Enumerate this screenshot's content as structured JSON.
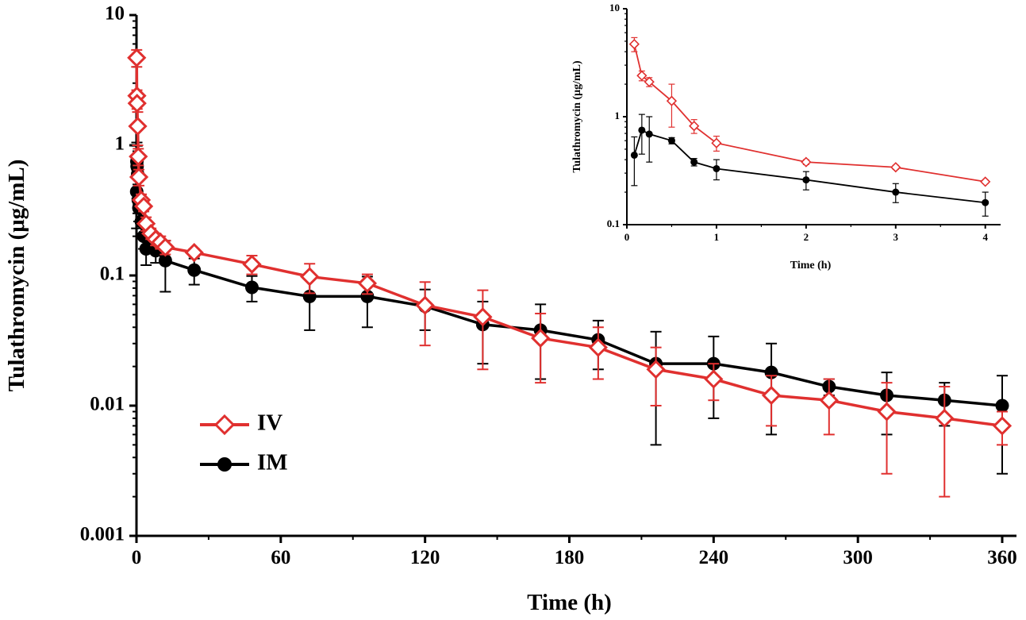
{
  "chart_data": [
    {
      "type": "line",
      "name": "main",
      "xlabel": "Time (h)",
      "ylabel": "Tulathromycin (μg/mL)",
      "yscale": "log",
      "xlim": [
        0,
        360
      ],
      "ylim": [
        0.001,
        10
      ],
      "xticks": [
        0,
        60,
        120,
        180,
        240,
        300,
        360
      ],
      "xtick_labels": [
        "0",
        "60",
        "120",
        "180",
        "240",
        "300",
        "360"
      ],
      "yticks": [
        0.001,
        0.01,
        0.1,
        1,
        10
      ],
      "ytick_labels": [
        "0.001",
        "0.01",
        "0.1",
        "1",
        "10"
      ],
      "legend": {
        "position": "lower-left",
        "entries": [
          "IV",
          "IM"
        ]
      },
      "series": [
        {
          "name": "IV",
          "color": "#e0302f",
          "marker": "open-diamond",
          "points": [
            {
              "x": 0.083,
              "y": 4.7,
              "err": 0.7
            },
            {
              "x": 0.167,
              "y": 2.4,
              "err": 0.25
            },
            {
              "x": 0.25,
              "y": 2.1,
              "err": 0.2
            },
            {
              "x": 0.5,
              "y": 1.4,
              "err": 0.4
            },
            {
              "x": 0.75,
              "y": 0.82,
              "err": 0.12
            },
            {
              "x": 1,
              "y": 0.57,
              "err": 0.08
            },
            {
              "x": 2,
              "y": 0.38,
              "err": 0.04
            },
            {
              "x": 3,
              "y": 0.34,
              "err": 0.03
            },
            {
              "x": 4,
              "y": 0.25,
              "err": 0.03
            },
            {
              "x": 6,
              "y": 0.21,
              "err": 0.02
            },
            {
              "x": 8,
              "y": 0.19,
              "err": 0.02
            },
            {
              "x": 10,
              "y": 0.18,
              "err": 0.02
            },
            {
              "x": 12,
              "y": 0.165,
              "err": 0.02
            },
            {
              "x": 24,
              "y": 0.15,
              "err": 0.01
            },
            {
              "x": 48,
              "y": 0.122,
              "err": 0.02
            },
            {
              "x": 72,
              "y": 0.098,
              "err": 0.025
            },
            {
              "x": 96,
              "y": 0.087,
              "err": 0.015
            },
            {
              "x": 120,
              "y": 0.059,
              "err": 0.03
            },
            {
              "x": 144,
              "y": 0.048,
              "err": 0.029
            },
            {
              "x": 168,
              "y": 0.033,
              "err": 0.018
            },
            {
              "x": 192,
              "y": 0.028,
              "err": 0.012
            },
            {
              "x": 216,
              "y": 0.019,
              "err": 0.009
            },
            {
              "x": 240,
              "y": 0.016,
              "err": 0.005
            },
            {
              "x": 264,
              "y": 0.012,
              "err": 0.005
            },
            {
              "x": 288,
              "y": 0.011,
              "err": 0.005
            },
            {
              "x": 312,
              "y": 0.009,
              "err": 0.006
            },
            {
              "x": 336,
              "y": 0.008,
              "err": 0.006
            },
            {
              "x": 360,
              "y": 0.007,
              "err": 0.002
            }
          ]
        },
        {
          "name": "IM",
          "color": "#000000",
          "marker": "filled-circle",
          "points": [
            {
              "x": 0.083,
              "y": 0.44,
              "err": 0.21
            },
            {
              "x": 0.167,
              "y": 0.75,
              "err": 0.3
            },
            {
              "x": 0.25,
              "y": 0.69,
              "err": 0.3
            },
            {
              "x": 0.5,
              "y": 0.6,
              "err": 0.04
            },
            {
              "x": 0.75,
              "y": 0.38,
              "err": 0.03
            },
            {
              "x": 1,
              "y": 0.33,
              "err": 0.07
            },
            {
              "x": 2,
              "y": 0.26,
              "err": 0.05
            },
            {
              "x": 3,
              "y": 0.2,
              "err": 0.04
            },
            {
              "x": 4,
              "y": 0.16,
              "err": 0.04
            },
            {
              "x": 6,
              "y": 0.18,
              "err": 0.03
            },
            {
              "x": 8,
              "y": 0.155,
              "err": 0.03
            },
            {
              "x": 12,
              "y": 0.13,
              "err": 0.055
            },
            {
              "x": 24,
              "y": 0.11,
              "err": 0.025
            },
            {
              "x": 48,
              "y": 0.081,
              "err": 0.018
            },
            {
              "x": 72,
              "y": 0.069,
              "err": 0.031
            },
            {
              "x": 96,
              "y": 0.069,
              "err": 0.029
            },
            {
              "x": 120,
              "y": 0.058,
              "err": 0.02
            },
            {
              "x": 144,
              "y": 0.042,
              "err": 0.021
            },
            {
              "x": 168,
              "y": 0.038,
              "err": 0.022
            },
            {
              "x": 192,
              "y": 0.032,
              "err": 0.013
            },
            {
              "x": 216,
              "y": 0.021,
              "err": 0.016
            },
            {
              "x": 240,
              "y": 0.021,
              "err": 0.013
            },
            {
              "x": 264,
              "y": 0.018,
              "err": 0.012
            },
            {
              "x": 288,
              "y": 0.014,
              "err": 0.002
            },
            {
              "x": 312,
              "y": 0.012,
              "err": 0.006
            },
            {
              "x": 336,
              "y": 0.011,
              "err": 0.004
            },
            {
              "x": 360,
              "y": 0.01,
              "err": 0.007
            }
          ]
        }
      ]
    },
    {
      "type": "line",
      "name": "inset",
      "xlabel": "Time (h)",
      "ylabel": "Tulathromycin (μg/mL)",
      "yscale": "log",
      "xlim": [
        0,
        4.1
      ],
      "ylim": [
        0.1,
        10
      ],
      "xticks": [
        0,
        1,
        2,
        3,
        4
      ],
      "xtick_labels": [
        "0",
        "1",
        "2",
        "3",
        "4"
      ],
      "yticks": [
        0.1,
        1,
        10
      ],
      "ytick_labels": [
        "0.1",
        "1",
        "10"
      ],
      "series": [
        {
          "name": "IV",
          "color": "#e0302f",
          "marker": "open-diamond",
          "points": [
            {
              "x": 0.083,
              "y": 4.7,
              "err": 0.7
            },
            {
              "x": 0.167,
              "y": 2.4,
              "err": 0.25
            },
            {
              "x": 0.25,
              "y": 2.1,
              "err": 0.2
            },
            {
              "x": 0.5,
              "y": 1.4,
              "err": 0.6
            },
            {
              "x": 0.75,
              "y": 0.82,
              "err": 0.12
            },
            {
              "x": 1,
              "y": 0.57,
              "err": 0.09
            },
            {
              "x": 2,
              "y": 0.38,
              "err": 0.02
            },
            {
              "x": 3,
              "y": 0.34,
              "err": 0.015
            },
            {
              "x": 4,
              "y": 0.25,
              "err": 0.01
            }
          ]
        },
        {
          "name": "IM",
          "color": "#000000",
          "marker": "filled-circle",
          "points": [
            {
              "x": 0.083,
              "y": 0.44,
              "err": 0.21
            },
            {
              "x": 0.167,
              "y": 0.75,
              "err": 0.3
            },
            {
              "x": 0.25,
              "y": 0.69,
              "err": 0.31
            },
            {
              "x": 0.5,
              "y": 0.6,
              "err": 0.04
            },
            {
              "x": 0.75,
              "y": 0.38,
              "err": 0.03
            },
            {
              "x": 1,
              "y": 0.33,
              "err": 0.07
            },
            {
              "x": 2,
              "y": 0.26,
              "err": 0.05
            },
            {
              "x": 3,
              "y": 0.2,
              "err": 0.04
            },
            {
              "x": 4,
              "y": 0.16,
              "err": 0.04
            }
          ]
        }
      ]
    }
  ]
}
